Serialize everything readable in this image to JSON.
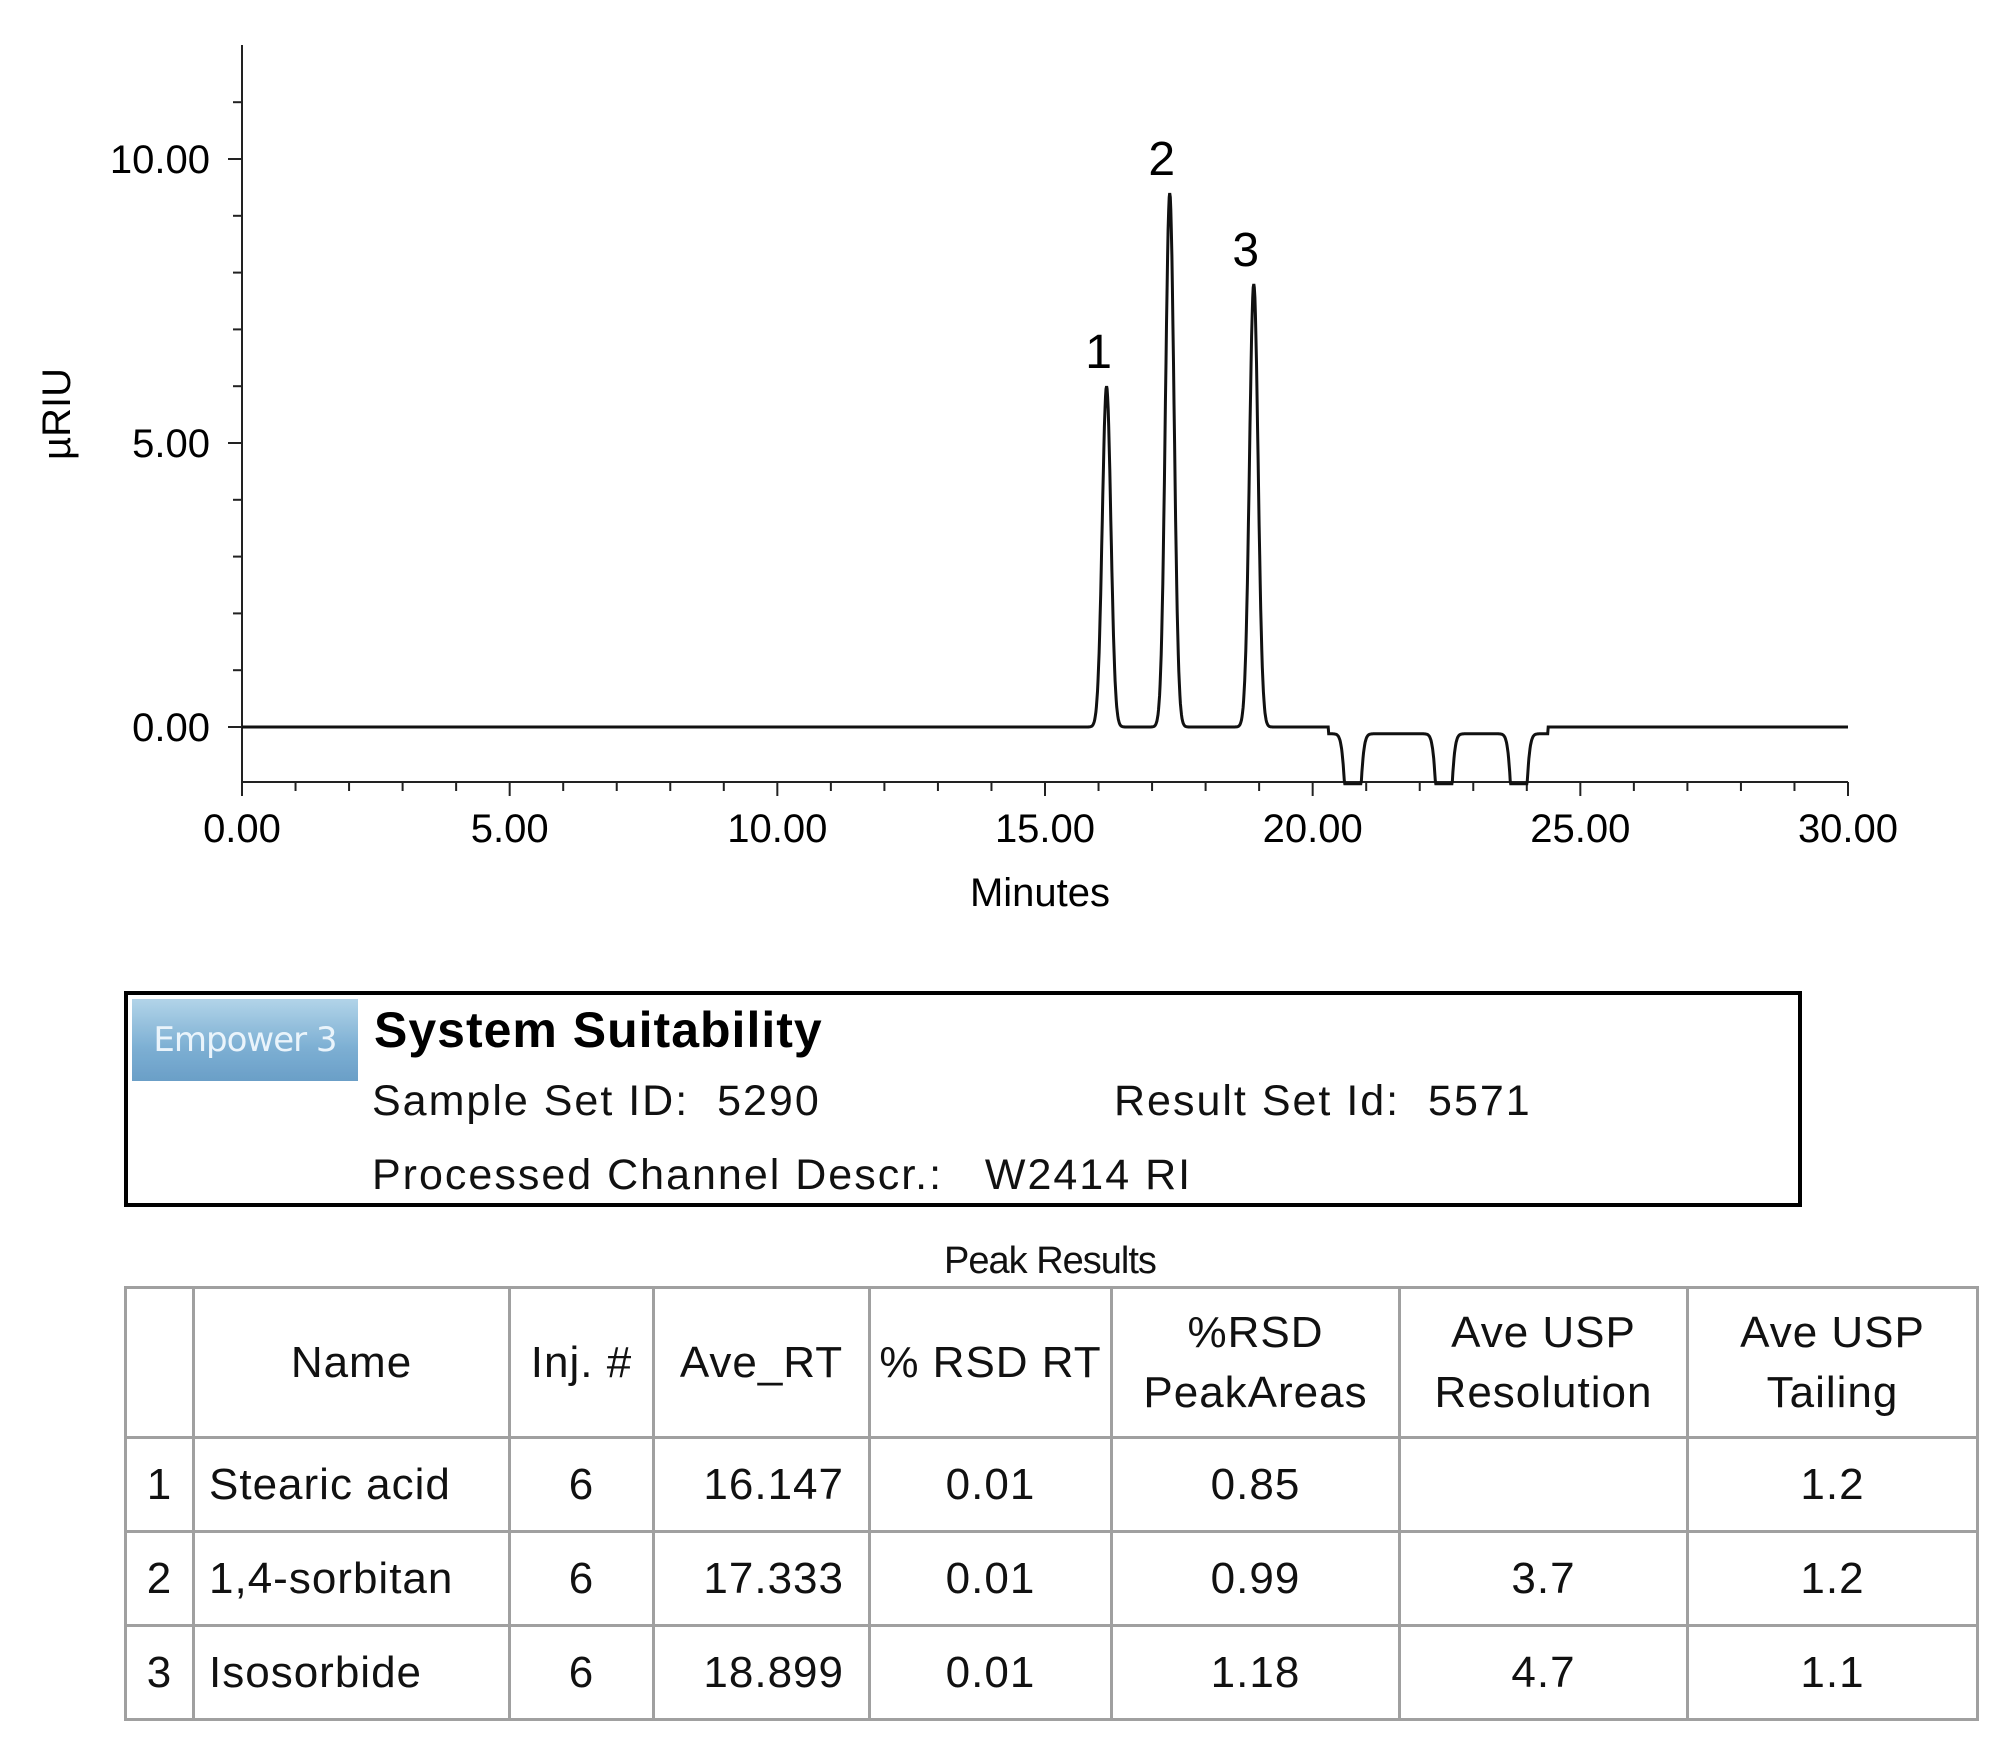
{
  "chart_data": {
    "type": "line",
    "xlabel": "Minutes",
    "ylabel": "µRIU",
    "xlim": [
      0,
      30
    ],
    "ylim": [
      -1,
      12
    ],
    "x_ticks": [
      "0.00",
      "5.00",
      "10.00",
      "15.00",
      "20.00",
      "25.00",
      "30.00"
    ],
    "y_ticks": [
      "0.00",
      "5.00",
      "10.00"
    ],
    "grid": false,
    "series": [
      {
        "peaks": [
          {
            "label": "1",
            "rt": 16.15,
            "height": 6.0
          },
          {
            "label": "2",
            "rt": 17.33,
            "height": 9.4
          },
          {
            "label": "3",
            "rt": 18.9,
            "height": 7.8
          }
        ],
        "dips": [
          {
            "rt": 20.75,
            "depth": -1.0
          },
          {
            "rt": 22.45,
            "depth": -1.0
          },
          {
            "rt": 23.85,
            "depth": -1.0
          }
        ]
      }
    ]
  },
  "report": {
    "logo_text": "Empower 3",
    "title": "System Suitability",
    "sample_set_label": "Sample Set ID:",
    "sample_set_value": "5290",
    "result_set_label": "Result Set Id:",
    "result_set_value": "5571",
    "channel_label": "Processed Channel Descr.:",
    "channel_value": "W2414 RI"
  },
  "peak_results": {
    "title": "Peak Results",
    "headers": [
      "",
      "Name",
      "Inj. #",
      "Ave_RT",
      "% RSD RT",
      "%RSD PeakAreas",
      "Ave USP Resolution",
      "Ave USP Tailing"
    ],
    "rows": [
      [
        "1",
        "Stearic acid",
        "6",
        "16.147",
        "0.01",
        "0.85",
        "",
        "1.2"
      ],
      [
        "2",
        "1,4-sorbitan",
        "6",
        "17.333",
        "0.01",
        "0.99",
        "3.7",
        "1.2"
      ],
      [
        "3",
        "Isosorbide",
        "6",
        "18.899",
        "0.01",
        "1.18",
        "4.7",
        "1.1"
      ]
    ]
  }
}
